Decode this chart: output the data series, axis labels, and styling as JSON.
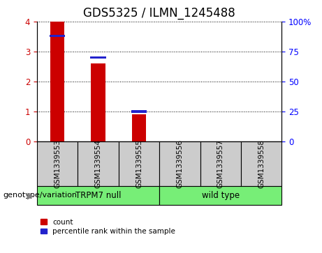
{
  "title": "GDS5325 / ILMN_1245488",
  "samples": [
    "GSM1339553",
    "GSM1339554",
    "GSM1339555",
    "GSM1339556",
    "GSM1339557",
    "GSM1339558"
  ],
  "count_values": [
    4.0,
    2.6,
    0.9,
    0.0,
    0.0,
    0.0
  ],
  "percentile_values": [
    88.0,
    70.0,
    25.0,
    0.0,
    0.0,
    0.0
  ],
  "ylim_left": [
    0,
    4
  ],
  "ylim_right": [
    0,
    100
  ],
  "yticks_left": [
    0,
    1,
    2,
    3,
    4
  ],
  "yticks_right": [
    0,
    25,
    50,
    75,
    100
  ],
  "ytick_labels_right": [
    "0",
    "25",
    "50",
    "75",
    "100%"
  ],
  "bar_color": "#cc0000",
  "percentile_color": "#2222cc",
  "group1_label": "TRPM7 null",
  "group2_label": "wild type",
  "group1_indices": [
    0,
    1,
    2
  ],
  "group2_indices": [
    3,
    4,
    5
  ],
  "group_color": "#77ee77",
  "sample_box_color": "#cccccc",
  "genotype_label": "genotype/variation",
  "legend_count": "count",
  "legend_percentile": "percentile rank within the sample",
  "bar_width": 0.35,
  "title_fontsize": 12,
  "tick_fontsize": 8.5,
  "sample_fontsize": 7.5,
  "group_fontsize": 8.5,
  "legend_fontsize": 7.5,
  "genotype_fontsize": 8
}
